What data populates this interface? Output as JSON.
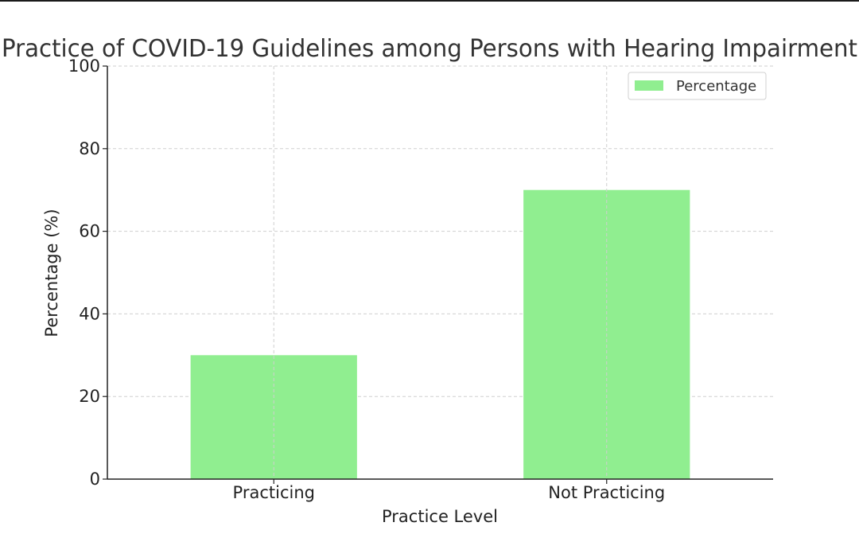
{
  "chart_data": {
    "type": "bar",
    "title": "Practice of COVID-19 Guidelines among Persons with Hearing Impairment",
    "xlabel": "Practice Level",
    "ylabel": "Percentage (%)",
    "categories": [
      "Practicing",
      "Not Practicing"
    ],
    "series": [
      {
        "name": "Percentage",
        "values": [
          30,
          70
        ],
        "color": "#90ee90"
      }
    ],
    "ylim": [
      0,
      100
    ],
    "yticks": [
      0,
      20,
      40,
      60,
      80,
      100
    ],
    "grid": true,
    "legend": "top-right"
  }
}
